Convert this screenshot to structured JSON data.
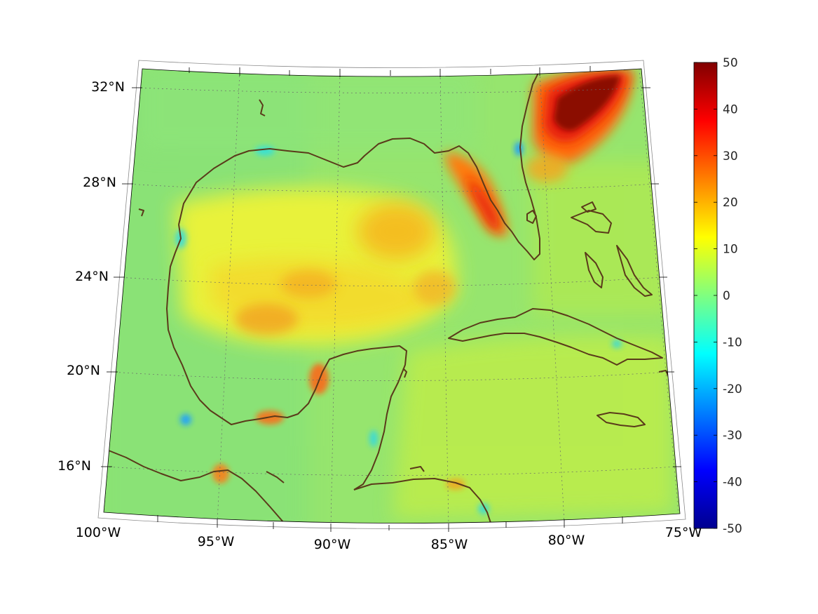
{
  "map": {
    "lat_labels": [
      "32°N",
      "28°N",
      "24°N",
      "20°N",
      "16°N"
    ],
    "lon_labels": [
      "100°W",
      "95°W",
      "90°W",
      "85°W",
      "80°W",
      "75°W"
    ],
    "colorbar": {
      "min": -50,
      "max": 50,
      "tick_labels": [
        "50",
        "40",
        "30",
        "20",
        "10",
        "0",
        "-10",
        "-20",
        "-30",
        "-40",
        "-50"
      ],
      "colormap": "jet"
    },
    "colors": {
      "coastline": "#5a3a1a",
      "background_field": "#8fe46a",
      "high": "#8b0000",
      "low": "#00008b"
    },
    "features": [
      "Gulf of Mexico",
      "Florida",
      "Cuba",
      "Yucatan Peninsula",
      "Bahamas",
      "Jamaica"
    ]
  }
}
